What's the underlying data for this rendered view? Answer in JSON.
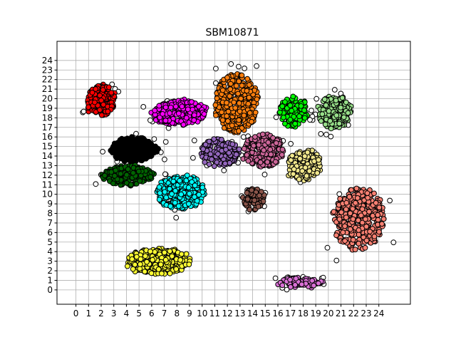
{
  "chart_data": {
    "type": "scatter",
    "title": "SBM10871",
    "xlabel": "",
    "ylabel": "",
    "xlim": [
      -1.5,
      26.5
    ],
    "ylim": [
      -1.5,
      26
    ],
    "xticks": [
      0,
      1,
      2,
      3,
      4,
      5,
      6,
      7,
      8,
      9,
      10,
      11,
      12,
      13,
      14,
      15,
      16,
      17,
      18,
      19,
      20,
      21,
      22,
      23,
      24
    ],
    "yticks": [
      0,
      1,
      2,
      3,
      4,
      5,
      6,
      7,
      8,
      9,
      10,
      11,
      12,
      13,
      14,
      15,
      16,
      17,
      18,
      19,
      20,
      21,
      22,
      23,
      24
    ],
    "grid": true,
    "legend": "none",
    "point_style": "circle markers with black edge; white markers are outliers",
    "seed": 10871,
    "series": [
      {
        "color": "#ff0000",
        "center": [
          2.0,
          19.8
        ],
        "spread": [
          1.1,
          1.6
        ],
        "count": 170
      },
      {
        "color": "#000000",
        "center": [
          4.6,
          14.7
        ],
        "spread": [
          1.8,
          1.3
        ],
        "count": 330
      },
      {
        "color": "#006400",
        "center": [
          4.1,
          12.0
        ],
        "spread": [
          2.0,
          1.0
        ],
        "count": 230
      },
      {
        "color": "#ff00ff",
        "center": [
          8.2,
          18.5
        ],
        "spread": [
          2.1,
          1.3
        ],
        "count": 280
      },
      {
        "color": "#00ffff",
        "center": [
          8.3,
          10.2
        ],
        "spread": [
          2.0,
          1.7
        ],
        "count": 280
      },
      {
        "color": "#9467bd",
        "center": [
          11.4,
          14.4
        ],
        "spread": [
          1.5,
          1.5
        ],
        "count": 150
      },
      {
        "color": "#ff7f0e",
        "center": [
          12.7,
          19.5
        ],
        "spread": [
          1.7,
          3.1
        ],
        "count": 360
      },
      {
        "color": "#ff7f0e",
        "center": [
          14.0,
          14.0
        ],
        "spread": [
          1.4,
          0.8
        ],
        "count": 0
      },
      {
        "color": "#cc6699",
        "center": [
          14.9,
          14.6
        ],
        "spread": [
          1.6,
          1.7
        ],
        "count": 220
      },
      {
        "color": "#8c564b",
        "center": [
          14.1,
          9.5
        ],
        "spread": [
          0.8,
          1.1
        ],
        "count": 70
      },
      {
        "color": "#00ff00",
        "center": [
          17.2,
          18.6
        ],
        "spread": [
          1.1,
          1.6
        ],
        "count": 130
      },
      {
        "color": "#98df8a",
        "center": [
          20.5,
          18.6
        ],
        "spread": [
          1.3,
          1.7
        ],
        "count": 190
      },
      {
        "color": "#f0e68c",
        "center": [
          18.1,
          13.0
        ],
        "spread": [
          1.3,
          1.6
        ],
        "count": 180
      },
      {
        "color": "#fa8072",
        "center": [
          22.4,
          7.4
        ],
        "spread": [
          2.0,
          3.3
        ],
        "count": 380
      },
      {
        "color": "#ffff33",
        "center": [
          6.5,
          3.0
        ],
        "spread": [
          2.5,
          1.3
        ],
        "count": 300
      },
      {
        "color": "#da70d6",
        "center": [
          17.7,
          0.7
        ],
        "spread": [
          1.8,
          0.5
        ],
        "count": 90
      }
    ],
    "outliers": {
      "color": "#ffffff",
      "count": 85
    }
  }
}
